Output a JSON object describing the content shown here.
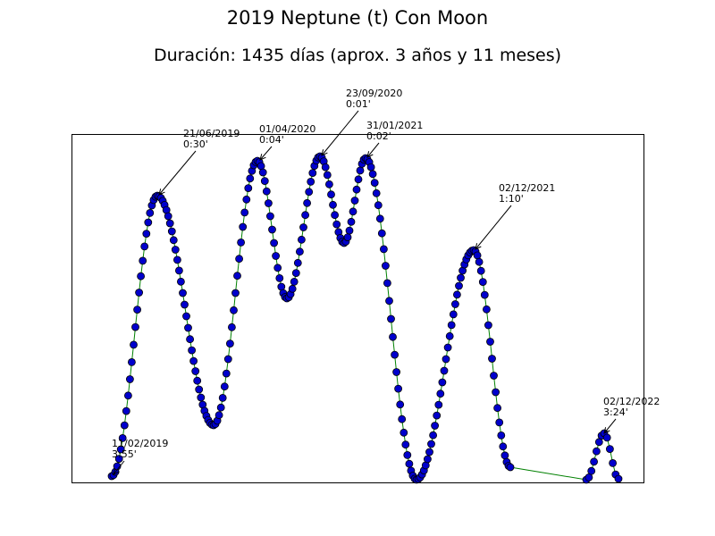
{
  "chart_data": {
    "type": "line",
    "title": "2019 Neptune (t) Con Moon",
    "subtitle": "Duración: 1435 días (aprox. 3 años y 11 meses)",
    "xlabel": "",
    "ylabel": "",
    "grid": false,
    "legend": "none",
    "line_color": "#008000",
    "marker_color": "#0000cc",
    "annotations": [
      {
        "date": "11/02/2019",
        "value": "3:55'"
      },
      {
        "date": "21/06/2019",
        "value": "0:30'"
      },
      {
        "date": "01/04/2020",
        "value": "0:04'"
      },
      {
        "date": "23/09/2020",
        "value": "0:01'"
      },
      {
        "date": "31/01/2021",
        "value": "0:02'"
      },
      {
        "date": "02/12/2021",
        "value": "1:10'"
      },
      {
        "date": "02/12/2022",
        "value": "3:24'"
      }
    ]
  }
}
